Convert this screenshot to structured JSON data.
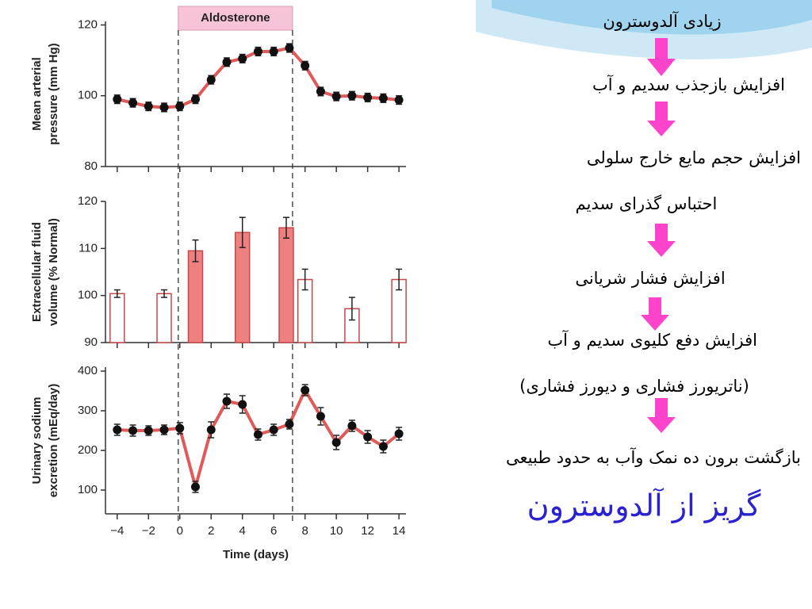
{
  "chart_data": [
    {
      "type": "line",
      "ylabel": [
        "Mean arterial",
        "pressure (mm Hg)"
      ],
      "ylim": [
        80,
        121
      ],
      "yticks": [
        80,
        100,
        120
      ],
      "annotation": {
        "label": "Aldosterone",
        "start": -0.1,
        "end": 7.2
      },
      "x": [
        -4,
        -3,
        -2,
        -1,
        0,
        1,
        2,
        3,
        4,
        5,
        6,
        7,
        8,
        9,
        10,
        11,
        12,
        13,
        14
      ],
      "series": [
        {
          "color": "#e05a5a",
          "values": [
            99,
            98,
            97,
            96.7,
            97,
            99,
            104.5,
            109.5,
            110.5,
            112.5,
            112.5,
            113.5,
            108.5,
            101.2,
            99.8,
            100,
            99.5,
            99.3,
            98.8
          ],
          "errors": [
            1.2,
            1.2,
            1.2,
            1.2,
            1.2,
            1.2,
            1.2,
            1.2,
            1.2,
            1.2,
            1.2,
            1.2,
            1.2,
            1.2,
            1.2,
            1.2,
            1.2,
            1.2,
            1.2
          ]
        }
      ]
    },
    {
      "type": "bar",
      "ylabel": [
        "Extracellular fluid",
        "volume  (% Normal)"
      ],
      "ylim": [
        90,
        120
      ],
      "yticks": [
        90,
        100,
        110,
        120
      ],
      "x": [
        -4,
        -1,
        1,
        4,
        6.8,
        8,
        11,
        14
      ],
      "values": [
        100.4,
        100.4,
        109.5,
        113.4,
        114.4,
        103.4,
        97.2,
        103.4
      ],
      "errors": [
        0.8,
        0.8,
        2.3,
        3.2,
        2.2,
        2.2,
        2.4,
        2.2
      ],
      "colors": [
        "#ffffff",
        "#ffffff",
        "#ee8080",
        "#ee8080",
        "#ee8080",
        "#ffffff",
        "#ffffff",
        "#ffffff"
      ]
    },
    {
      "type": "line",
      "ylabel": [
        "Urinary sodium",
        "excretion (mEq/day)"
      ],
      "ylim": [
        40,
        410
      ],
      "yticks": [
        100,
        200,
        300,
        400
      ],
      "xlabel": "Time (days)",
      "xlim": [
        -4.75,
        14.45
      ],
      "xticks": [
        {
          "value": -4,
          "label": "−4"
        },
        {
          "value": -2,
          "label": "−2"
        },
        0,
        2,
        4,
        6,
        8,
        10,
        12,
        14
      ],
      "x": [
        -4,
        -3,
        -2,
        -1,
        0,
        1,
        2,
        3,
        4,
        5,
        6,
        7,
        8,
        9,
        10,
        11,
        12,
        13,
        14
      ],
      "series": [
        {
          "color": "#e05a5a",
          "values": [
            252,
            250,
            250,
            252,
            256,
            108,
            252,
            324,
            316,
            240,
            252,
            266,
            352,
            286,
            220,
            262,
            234,
            210,
            242
          ],
          "errors": [
            14,
            14,
            12,
            12,
            14,
            14,
            20,
            18,
            22,
            14,
            14,
            12,
            14,
            22,
            18,
            14,
            16,
            16,
            16
          ]
        }
      ]
    }
  ],
  "slide_text": [
    "زیادی آلدوسترون",
    "افزایش بازجذب سدیم و آب",
    "افزایش حجم مایع خارج سلولی",
    "احتباس گذرای سدیم",
    "افزایش فشار شریانی",
    "افزایش دفع کلیوی سدیم و آب",
    "(ناتریورز فشاری و دیورز فشاری)",
    "بازگشت برون ده نمک وآب به حدود طبیعی"
  ],
  "slide_title": "گریز از آلدوسترون"
}
